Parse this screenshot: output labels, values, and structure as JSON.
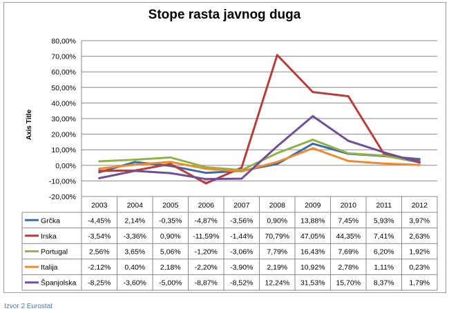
{
  "chart_data": {
    "type": "line",
    "title": "Stope rasta javnog duga",
    "ylabel": "Axis Title",
    "xlabel": "",
    "categories": [
      "2003",
      "2004",
      "2005",
      "2006",
      "2007",
      "2008",
      "2009",
      "2010",
      "2011",
      "2012"
    ],
    "ylim": [
      -20,
      80
    ],
    "yticks": [
      "-20,00%",
      "-10,00%",
      "0,00%",
      "10,00%",
      "20,00%",
      "30,00%",
      "40,00%",
      "50,00%",
      "60,00%",
      "70,00%",
      "80,00%"
    ],
    "grid": true,
    "legend": "data-table-left",
    "series": [
      {
        "name": "Grčka",
        "color": "#3a6aa9",
        "values": [
          -4.45,
          2.14,
          -0.35,
          -4.87,
          -3.56,
          0.9,
          13.88,
          7.45,
          5.93,
          3.97
        ],
        "labels": [
          "-4,45%",
          "2,14%",
          "-0,35%",
          "-4,87%",
          "-3,56%",
          "0,90%",
          "13,88%",
          "7,45%",
          "5,93%",
          "3,97%"
        ]
      },
      {
        "name": "Irska",
        "color": "#b83c3a",
        "values": [
          -3.54,
          -3.36,
          0.9,
          -11.59,
          -1.44,
          70.79,
          47.05,
          44.35,
          7.41,
          2.63
        ],
        "labels": [
          "-3,54%",
          "-3,36%",
          "0,90%",
          "-11,59%",
          "-1,44%",
          "70,79%",
          "47,05%",
          "44,35%",
          "7,41%",
          "2,63%"
        ]
      },
      {
        "name": "Portugal",
        "color": "#8fb347",
        "values": [
          2.56,
          3.65,
          5.06,
          -1.2,
          -3.06,
          7.79,
          16.43,
          7.69,
          6.2,
          1.92
        ],
        "labels": [
          "2,56%",
          "3,65%",
          "5,06%",
          "-1,20%",
          "-3,06%",
          "7,79%",
          "16,43%",
          "7,69%",
          "6,20%",
          "1,92%"
        ]
      },
      {
        "name": "Italija",
        "color": "#ee8a2e",
        "values": [
          -2.12,
          0.4,
          2.18,
          -2.2,
          -3.9,
          2.19,
          10.92,
          2.78,
          1.11,
          0.23
        ],
        "labels": [
          "-2,12%",
          "0,40%",
          "2,18%",
          "-2,20%",
          "-3,90%",
          "2,19%",
          "10,92%",
          "2,78%",
          "1,11%",
          "0,23%"
        ]
      },
      {
        "name": "Španjolska",
        "color": "#6f4e96",
        "values": [
          -8.25,
          -3.6,
          -5.0,
          -8.87,
          -8.52,
          12.24,
          31.53,
          15.7,
          8.37,
          1.79
        ],
        "labels": [
          "-8,25%",
          "-3,60%",
          "-5,00%",
          "-8,87%",
          "-8,52%",
          "12,24%",
          "31,53%",
          "15,70%",
          "8,37%",
          "1,79%"
        ]
      }
    ]
  },
  "source_note": "Izvor 2 Eurostat"
}
